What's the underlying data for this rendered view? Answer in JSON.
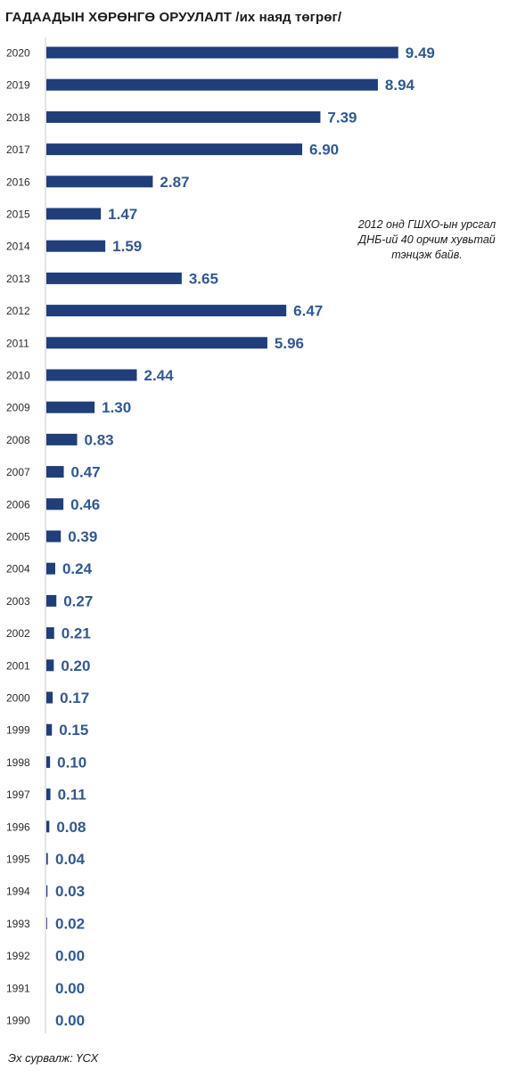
{
  "colors": {
    "bar": "#1f3e7a",
    "value_text": "#32598f",
    "axis": "#c9c9c9"
  },
  "chart_data": {
    "type": "bar",
    "orientation": "horizontal",
    "title": "ГАДААДЫН ХӨРӨНГӨ ОРУУЛАЛТ /их наяд төгрөг/",
    "xlim": [
      0,
      11
    ],
    "grid": false,
    "categories": [
      "2020",
      "2019",
      "2018",
      "2017",
      "2016",
      "2015",
      "2014",
      "2013",
      "2012",
      "2011",
      "2010",
      "2009",
      "2008",
      "2007",
      "2006",
      "2005",
      "2004",
      "2003",
      "2002",
      "2001",
      "2000",
      "1999",
      "1998",
      "1997",
      "1996",
      "1995",
      "1994",
      "1993",
      "1992",
      "1991",
      "1990"
    ],
    "values": [
      9.49,
      8.94,
      7.39,
      6.9,
      2.87,
      1.47,
      1.59,
      3.65,
      6.47,
      5.96,
      2.44,
      1.3,
      0.83,
      0.47,
      0.46,
      0.39,
      0.24,
      0.27,
      0.21,
      0.2,
      0.17,
      0.15,
      0.1,
      0.11,
      0.08,
      0.04,
      0.03,
      0.02,
      0.0,
      0.0,
      0.0
    ],
    "value_labels": [
      "9.49",
      "8.94",
      "7.39",
      "6.90",
      "2.87",
      "1.47",
      "1.59",
      "3.65",
      "6.47",
      "5.96",
      "2.44",
      "1.30",
      "0.83",
      "0.47",
      "0.46",
      "0.39",
      "0.24",
      "0.27",
      "0.21",
      "0.20",
      "0.17",
      "0.15",
      "0.10",
      "0.11",
      "0.08",
      "0.04",
      "0.03",
      "0.02",
      "0.00",
      "0.00",
      "0.00"
    ],
    "annotation": "2012 онд ГШХО-ын урсгал ДНБ-ий 40 орчим хувьтай тэнцэж байв."
  },
  "source": "Эх сурвалж: ҮСХ"
}
